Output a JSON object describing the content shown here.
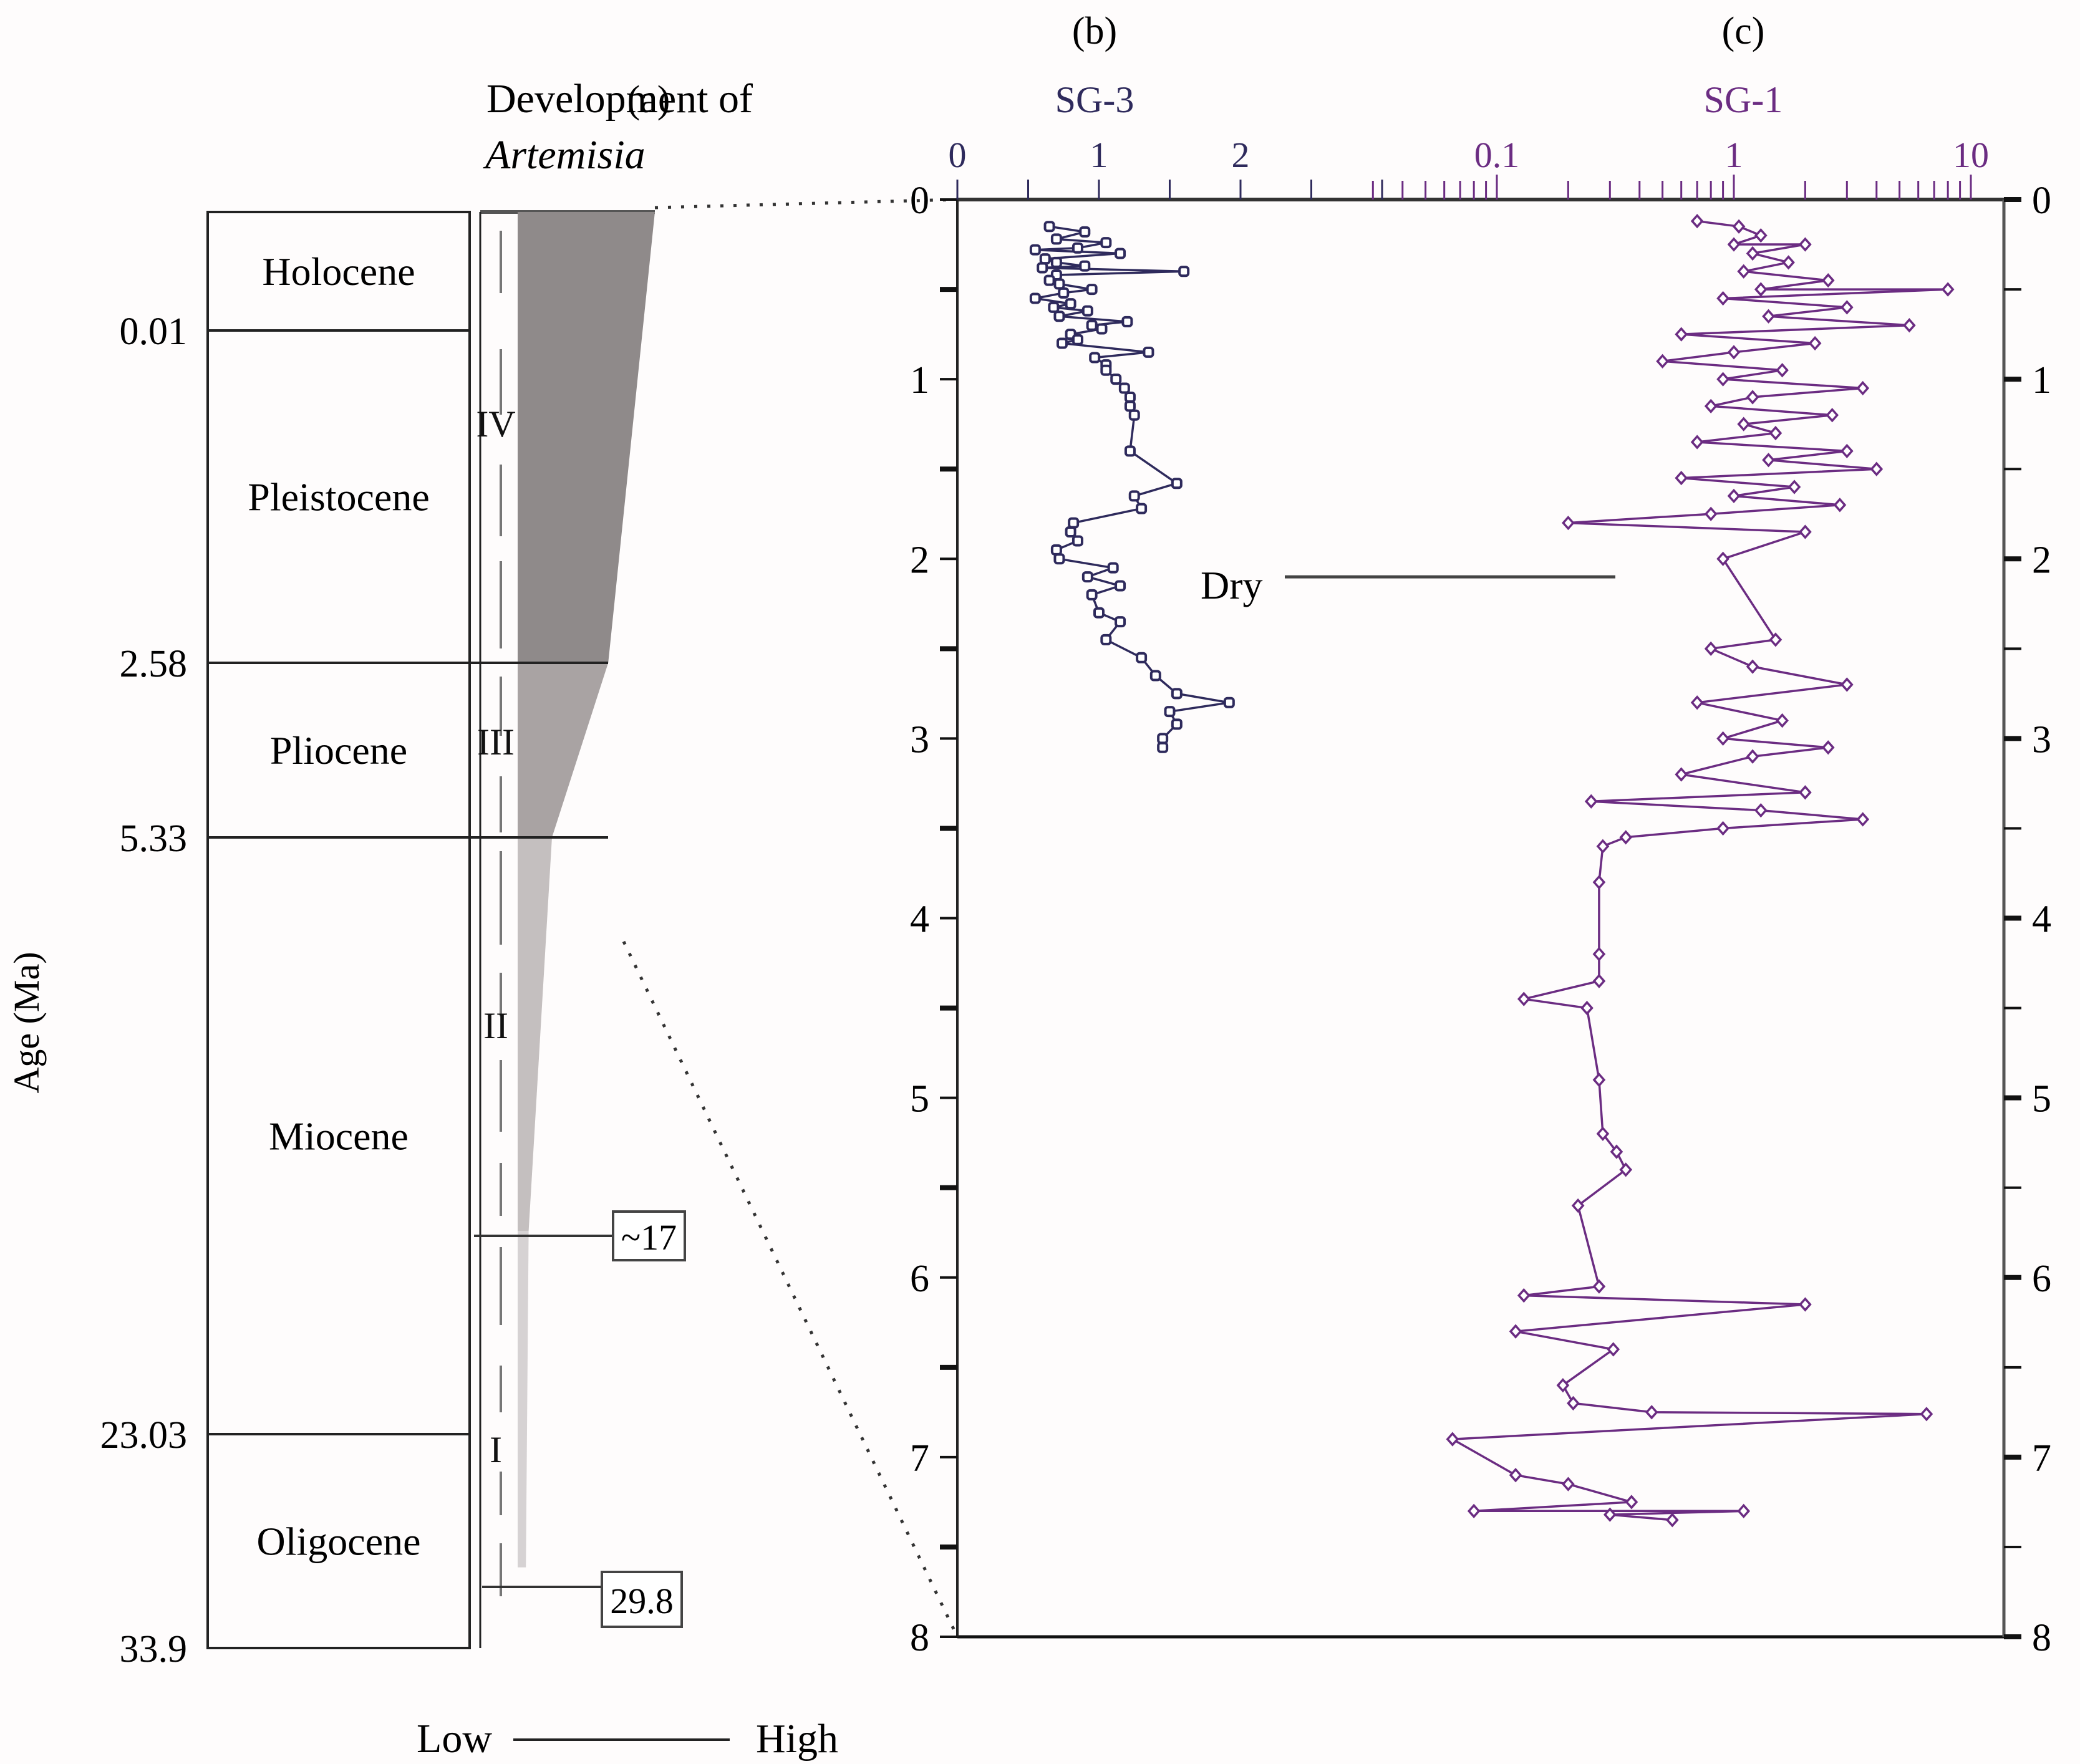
{
  "panels": {
    "a_label": "(a)",
    "b_label": "(b)",
    "c_label": "(c)"
  },
  "panel_a": {
    "title_line1": "Development of",
    "title_line2": "Artemisia",
    "y_axis_label": "Age (Ma)",
    "epochs": [
      {
        "name": "Holocene",
        "top_ma": 0,
        "bottom_ma": 0.01
      },
      {
        "name": "Pleistocene",
        "top_ma": 0.01,
        "bottom_ma": 2.58
      },
      {
        "name": "Pliocene",
        "top_ma": 2.58,
        "bottom_ma": 5.33
      },
      {
        "name": "Miocene",
        "top_ma": 5.33,
        "bottom_ma": 23.03
      },
      {
        "name": "Oligocene",
        "top_ma": 23.03,
        "bottom_ma": 33.9
      }
    ],
    "boundary_labels": [
      "0.01",
      "2.58",
      "5.33",
      "23.03",
      "33.9"
    ],
    "stages": [
      {
        "label": "IV"
      },
      {
        "label": "III"
      },
      {
        "label": "II"
      },
      {
        "label": "I"
      }
    ],
    "markers": [
      {
        "label": "~17",
        "age_ma": 17
      },
      {
        "label": "29.8",
        "age_ma": 29.8
      }
    ],
    "scale_low": "Low",
    "scale_high": "High",
    "abundance_profile": [
      {
        "age_ma": 0,
        "level": 1.0
      },
      {
        "age_ma": 2.58,
        "level": 0.66
      },
      {
        "age_ma": 5.33,
        "level": 0.25
      },
      {
        "age_ma": 17,
        "level": 0.08
      },
      {
        "age_ma": 29.8,
        "level": 0.06
      }
    ]
  },
  "chart_data": {
    "type": "scatter",
    "ylabel": "Age (Ma)",
    "ylim": [
      0,
      8
    ],
    "y_ticks": [
      "0",
      "1",
      "2",
      "3",
      "4",
      "5",
      "6",
      "7",
      "8"
    ],
    "annotation": {
      "text": "Dry",
      "age_ma": 2.1
    },
    "series": [
      {
        "name": "SG-3",
        "panel": "(b)",
        "color": "#2e2a5c",
        "marker": "square",
        "xscale": "linear",
        "xlim": [
          0,
          3
        ],
        "x_ticks": [
          "0",
          "1",
          "2"
        ],
        "points": [
          [
            0.15,
            0.65
          ],
          [
            0.18,
            0.9
          ],
          [
            0.22,
            0.7
          ],
          [
            0.24,
            1.05
          ],
          [
            0.27,
            0.85
          ],
          [
            0.28,
            0.55
          ],
          [
            0.3,
            1.15
          ],
          [
            0.33,
            0.62
          ],
          [
            0.35,
            0.7
          ],
          [
            0.37,
            0.9
          ],
          [
            0.38,
            0.6
          ],
          [
            0.4,
            1.6
          ],
          [
            0.42,
            0.7
          ],
          [
            0.45,
            0.65
          ],
          [
            0.47,
            0.72
          ],
          [
            0.5,
            0.95
          ],
          [
            0.52,
            0.75
          ],
          [
            0.55,
            0.55
          ],
          [
            0.58,
            0.8
          ],
          [
            0.6,
            0.68
          ],
          [
            0.62,
            0.92
          ],
          [
            0.65,
            0.72
          ],
          [
            0.68,
            1.2
          ],
          [
            0.7,
            0.95
          ],
          [
            0.72,
            1.02
          ],
          [
            0.75,
            0.8
          ],
          [
            0.78,
            0.85
          ],
          [
            0.8,
            0.74
          ],
          [
            0.85,
            1.35
          ],
          [
            0.88,
            0.97
          ],
          [
            0.92,
            1.05
          ],
          [
            0.95,
            1.05
          ],
          [
            1.0,
            1.12
          ],
          [
            1.05,
            1.18
          ],
          [
            1.1,
            1.22
          ],
          [
            1.15,
            1.22
          ],
          [
            1.2,
            1.25
          ],
          [
            1.4,
            1.22
          ],
          [
            1.58,
            1.55
          ],
          [
            1.65,
            1.25
          ],
          [
            1.72,
            1.3
          ],
          [
            1.8,
            0.82
          ],
          [
            1.85,
            0.8
          ],
          [
            1.9,
            0.85
          ],
          [
            1.95,
            0.7
          ],
          [
            2.0,
            0.72
          ],
          [
            2.05,
            1.1
          ],
          [
            2.1,
            0.92
          ],
          [
            2.15,
            1.15
          ],
          [
            2.2,
            0.95
          ],
          [
            2.3,
            1.0
          ],
          [
            2.35,
            1.15
          ],
          [
            2.45,
            1.05
          ],
          [
            2.55,
            1.3
          ],
          [
            2.65,
            1.4
          ],
          [
            2.75,
            1.55
          ],
          [
            2.8,
            1.92
          ],
          [
            2.85,
            1.5
          ],
          [
            2.92,
            1.55
          ],
          [
            3.0,
            1.45
          ],
          [
            3.05,
            1.45
          ]
        ]
      },
      {
        "name": "SG-1",
        "panel": "(c)",
        "color": "#6b2c82",
        "marker": "diamond",
        "xscale": "log",
        "xlim": [
          0.01,
          12
        ],
        "x_ticks": [
          "0.1",
          "1",
          "10"
        ],
        "points": [
          [
            0.12,
            0.7
          ],
          [
            0.15,
            1.05
          ],
          [
            0.2,
            1.3
          ],
          [
            0.25,
            1.0
          ],
          [
            0.25,
            2.0
          ],
          [
            0.3,
            1.2
          ],
          [
            0.35,
            1.7
          ],
          [
            0.4,
            1.1
          ],
          [
            0.45,
            2.5
          ],
          [
            0.5,
            1.3
          ],
          [
            0.5,
            8.0
          ],
          [
            0.55,
            0.9
          ],
          [
            0.6,
            3.0
          ],
          [
            0.65,
            1.4
          ],
          [
            0.7,
            5.5
          ],
          [
            0.75,
            0.6
          ],
          [
            0.8,
            2.2
          ],
          [
            0.85,
            1.0
          ],
          [
            0.9,
            0.5
          ],
          [
            0.95,
            1.6
          ],
          [
            1.0,
            0.9
          ],
          [
            1.05,
            3.5
          ],
          [
            1.1,
            1.2
          ],
          [
            1.15,
            0.8
          ],
          [
            1.2,
            2.6
          ],
          [
            1.25,
            1.1
          ],
          [
            1.3,
            1.5
          ],
          [
            1.35,
            0.7
          ],
          [
            1.4,
            3.0
          ],
          [
            1.45,
            1.4
          ],
          [
            1.5,
            4.0
          ],
          [
            1.55,
            0.6
          ],
          [
            1.6,
            1.8
          ],
          [
            1.65,
            1.0
          ],
          [
            1.7,
            2.8
          ],
          [
            1.75,
            0.8
          ],
          [
            1.8,
            0.2
          ],
          [
            1.85,
            2.0
          ],
          [
            2.0,
            0.9
          ],
          [
            2.5,
            0.8
          ],
          [
            2.45,
            1.5
          ],
          [
            2.6,
            1.2
          ],
          [
            2.7,
            3.0
          ],
          [
            2.8,
            0.7
          ],
          [
            2.9,
            1.6
          ],
          [
            3.0,
            0.9
          ],
          [
            3.05,
            2.5
          ],
          [
            3.1,
            1.2
          ],
          [
            3.2,
            0.6
          ],
          [
            3.3,
            2.0
          ],
          [
            3.35,
            0.25
          ],
          [
            3.4,
            1.3
          ],
          [
            3.45,
            3.5
          ],
          [
            3.5,
            0.9
          ],
          [
            3.55,
            0.35
          ],
          [
            3.6,
            0.28
          ],
          [
            3.8,
            0.27
          ],
          [
            4.2,
            0.27
          ],
          [
            4.35,
            0.27
          ],
          [
            4.45,
            0.13
          ],
          [
            4.5,
            0.24
          ],
          [
            4.9,
            0.27
          ],
          [
            5.2,
            0.28
          ],
          [
            5.3,
            0.32
          ],
          [
            5.4,
            0.35
          ],
          [
            5.6,
            0.22
          ],
          [
            6.05,
            0.27
          ],
          [
            6.1,
            0.13
          ],
          [
            6.15,
            2.0
          ],
          [
            6.3,
            0.12
          ],
          [
            6.4,
            0.31
          ],
          [
            6.6,
            0.19
          ],
          [
            6.7,
            0.21
          ],
          [
            6.75,
            0.45
          ],
          [
            6.76,
            6.5
          ],
          [
            6.9,
            0.065
          ],
          [
            7.1,
            0.12
          ],
          [
            7.15,
            0.2
          ],
          [
            7.25,
            0.37
          ],
          [
            7.3,
            0.08
          ],
          [
            7.32,
            0.3
          ],
          [
            7.3,
            1.1
          ],
          [
            7.35,
            0.55
          ]
        ]
      }
    ]
  }
}
